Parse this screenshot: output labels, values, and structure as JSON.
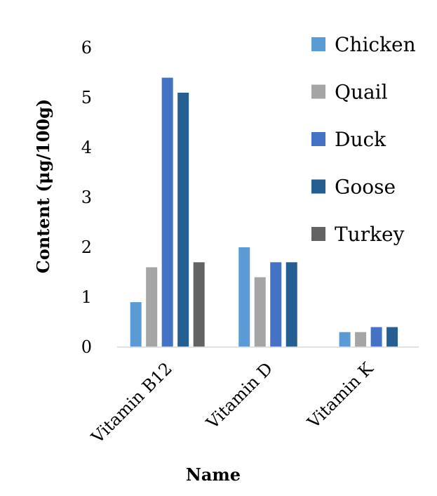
{
  "chart_data": {
    "type": "bar",
    "categories": [
      "Vitamin B12",
      "Vitamin D",
      "Vitamin K"
    ],
    "series": [
      {
        "name": "Chicken",
        "color": "#5B9BD5",
        "values": [
          0.9,
          2.0,
          0.3
        ]
      },
      {
        "name": "Quail",
        "color": "#A5A5A5",
        "values": [
          1.6,
          1.4,
          0.3
        ]
      },
      {
        "name": "Duck",
        "color": "#4472C4",
        "values": [
          5.4,
          1.7,
          0.4
        ]
      },
      {
        "name": "Goose",
        "color": "#255E91",
        "values": [
          5.1,
          1.7,
          0.4
        ]
      },
      {
        "name": "Turkey",
        "color": "#636363",
        "values": [
          1.7,
          0,
          0
        ]
      }
    ],
    "xlabel": "Name",
    "ylabel": "Content (μg/100g)",
    "ylim": [
      0,
      6
    ],
    "yticks": [
      0,
      1,
      2,
      3,
      4,
      5,
      6
    ],
    "grid": false,
    "legend_position": "right"
  }
}
